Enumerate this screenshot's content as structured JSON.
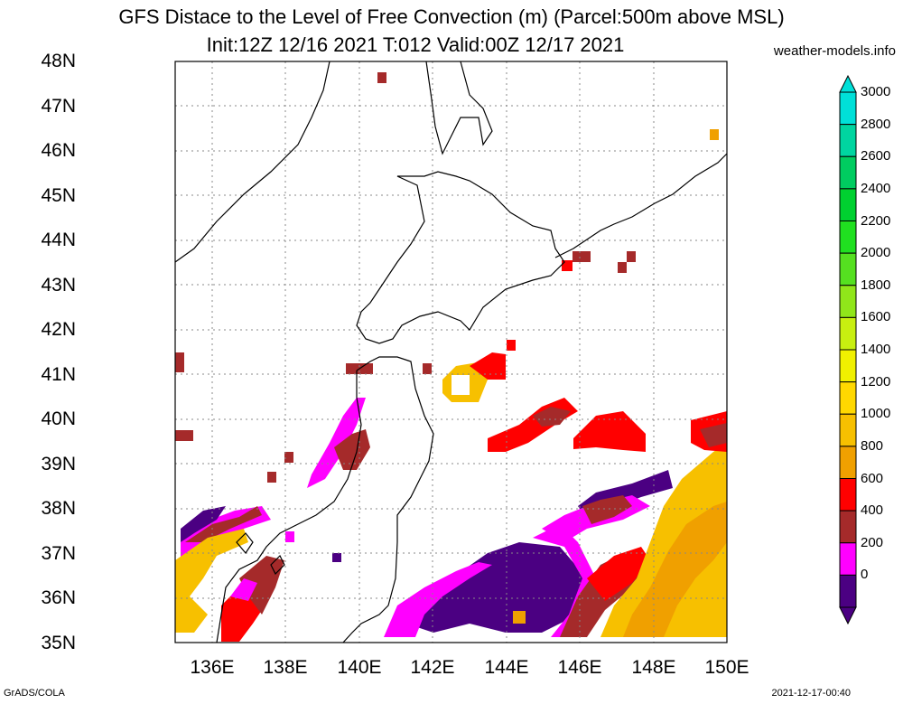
{
  "title_line1": "GFS Distace to the Level of Free Convection (m) (Parcel:500m above MSL)",
  "title_line2": "Init:12Z 12/16 2021 T:012 Valid:00Z 12/17 2021",
  "site": "weather-models.info",
  "footer_left": "GrADS/COLA",
  "footer_right": "2021-12-17-00:40",
  "lat_labels": [
    "48N",
    "47N",
    "46N",
    "45N",
    "44N",
    "43N",
    "42N",
    "41N",
    "40N",
    "39N",
    "38N",
    "37N",
    "36N",
    "35N"
  ],
  "lon_labels": [
    "136E",
    "138E",
    "140E",
    "142E",
    "144E",
    "146E",
    "148E",
    "150E"
  ],
  "colorbar": {
    "labels": [
      "3000",
      "2800",
      "2600",
      "2400",
      "2200",
      "2000",
      "1800",
      "1600",
      "1400",
      "1200",
      "1000",
      "800",
      "600",
      "400",
      "200",
      "0"
    ],
    "colors": [
      "#00e0d8",
      "#00d5a0",
      "#00cc60",
      "#00d030",
      "#20e020",
      "#55e020",
      "#90e61a",
      "#c8ef10",
      "#f0f000",
      "#ffd800",
      "#f7c000",
      "#f0a000",
      "#ff0000",
      "#a52a2a",
      "#ff00ff",
      "#4b0082"
    ]
  },
  "map": {
    "lon_range": [
      135,
      150
    ],
    "lat_range": [
      35,
      48
    ]
  }
}
